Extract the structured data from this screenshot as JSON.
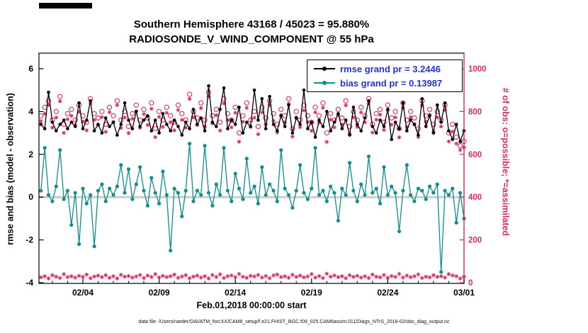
{
  "header": {
    "title_line1": "Southern Hemisphere 43168 / 45023 = 95.880%",
    "title_line2": "RADIOSONDE_V_WIND_COMPONENT @ 55 hPa"
  },
  "axes": {
    "left_label": "rmse and bias (model - observation)",
    "right_label": "# of obs: o=possible; *=assimilated",
    "x_label": "Feb.01,2018 00:00:00 start",
    "x_tick_labels": [
      "02/04",
      "02/09",
      "02/14",
      "02/19",
      "02/24",
      "03/01"
    ],
    "x_tick_days": [
      3,
      8,
      13,
      18,
      23,
      28
    ],
    "left_ticks": [
      -4,
      -2,
      0,
      2,
      4,
      6
    ],
    "right_ticks": [
      0,
      200,
      400,
      600,
      800,
      1000
    ]
  },
  "legend": {
    "text_color": "#2334d4",
    "entries": [
      {
        "label": "rmse grand pr = 3.2446",
        "color": "#000000"
      },
      {
        "label": "bias grand pr = 0.13987",
        "color": "#0f8e8e"
      }
    ]
  },
  "footer": {
    "data_file": "data file: /Users/raeder/DAI/ATM_forcXX/CAM6_setup/f.e21.FHIST_BGC.f09_025.CAM6assim.011/Diags_NTrS_2018-02/obs_diag_output.nc"
  },
  "colors": {
    "pink": "#dc2a63",
    "teal": "#0f8e8e",
    "black": "#000000",
    "zero_line": "#cccccc",
    "legend_text": "#2334d4"
  },
  "chart_data": {
    "type": "line",
    "title": "Southern Hemisphere 43168 / 45023 = 95.880%",
    "subtitle": "RADIOSONDE_V_WIND_COMPONENT @ 55 hPa",
    "xlabel": "Feb.01,2018 00:00:00 start",
    "ylabel_left": "rmse and bias (model - observation)",
    "ylabel_right": "# of obs: o=possible; *=assimilated",
    "ylim_left": [
      -4,
      6.8
    ],
    "ylim_right": [
      0,
      1070
    ],
    "xlim_days": [
      0,
      28
    ],
    "grid": false,
    "legend_position": "top-right",
    "x": {
      "start_day": 0.25,
      "step_days": 0.25,
      "count": 112
    },
    "series": [
      {
        "name": "possible_obs",
        "axis": "right",
        "color": "#dc2a63",
        "marker": "open-circle",
        "line": false,
        "values": [
          780,
          820,
          850,
          760,
          800,
          870,
          740,
          790,
          810,
          760,
          830,
          780,
          750,
          860,
          790,
          770,
          800,
          740,
          820,
          780,
          850,
          760,
          800,
          730,
          790,
          830,
          760,
          810,
          770,
          840,
          720,
          800,
          760,
          820,
          780,
          750,
          830,
          790,
          760,
          880,
          800,
          770,
          840,
          760,
          890,
          780,
          810,
          750,
          860,
          790,
          760,
          820,
          700,
          780,
          840,
          760,
          800,
          730,
          820,
          770,
          850,
          790,
          740,
          810,
          780,
          860,
          720,
          800,
          760,
          830,
          780,
          750,
          820,
          780,
          840,
          700,
          790,
          760,
          810,
          770,
          850,
          730,
          800,
          760,
          820,
          780,
          860,
          740,
          790,
          810,
          750,
          830,
          770,
          800,
          720,
          840,
          760,
          800,
          770,
          720,
          850,
          780,
          810,
          740,
          800,
          760,
          830,
          700,
          740,
          680,
          640,
          660
        ]
      },
      {
        "name": "assimilated_obs",
        "axis": "right",
        "color": "#dc2a63",
        "marker": "asterisk",
        "line": false,
        "values": [
          755,
          790,
          830,
          725,
          772,
          848,
          700,
          764,
          780,
          736,
          798,
          753,
          712,
          839,
          761,
          737,
          774,
          705,
          797,
          750,
          830,
          723,
          772,
          699,
          766,
          801,
          724,
          788,
          737,
          813,
          680,
          775,
          728,
          794,
          750,
          712,
          807,
          761,
          725,
          859,
          772,
          737,
          816,
          730,
          870,
          744,
          783,
          711,
          838,
          760,
          726,
          794,
          659,
          752,
          817,
          728,
          771,
          694,
          796,
          739,
          829,
          756,
          702,
          784,
          750,
          837,
          683,
          773,
          727,
          805,
          751,
          710,
          796,
          749,
          818,
          658,
          762,
          726,
          784,
          740,
          829,
          695,
          773,
          728,
          796,
          750,
          838,
          702,
          762,
          785,
          714,
          807,
          739,
          773,
          679,
          816,
          727,
          774,
          740,
          681,
          828,
          752,
          785,
          705,
          773,
          730,
          806,
          660,
          706,
          650,
          620,
          632
        ]
      },
      {
        "name": "rejected_obs",
        "axis": "right",
        "color": "#dc2a63",
        "marker": "asterisk",
        "line": false,
        "values": [
          25,
          30,
          20,
          35,
          28,
          22,
          40,
          26,
          30,
          24,
          32,
          27,
          38,
          21,
          29,
          33,
          26,
          35,
          23,
          30,
          20,
          37,
          28,
          31,
          24,
          29,
          36,
          22,
          33,
          27,
          40,
          25,
          32,
          26,
          30,
          38,
          23,
          29,
          35,
          21,
          28,
          33,
          24,
          30,
          20,
          36,
          27,
          39,
          22,
          30,
          34,
          26,
          41,
          28,
          23,
          32,
          29,
          36,
          24,
          31,
          21,
          34,
          38,
          26,
          30,
          23,
          37,
          27,
          33,
          25,
          29,
          40,
          24,
          31,
          22,
          42,
          28,
          34,
          26,
          30,
          21,
          35,
          27,
          32,
          24,
          30,
          22,
          38,
          28,
          25,
          36,
          23,
          31,
          27,
          41,
          24,
          33,
          26,
          30,
          39,
          22,
          28,
          25,
          35,
          27,
          30,
          24,
          40,
          34,
          30,
          20,
          28
        ]
      },
      {
        "name": "rmse",
        "axis": "left",
        "color": "#000000",
        "marker": "dot",
        "line": true,
        "values": [
          3.4,
          3.2,
          4.9,
          3.5,
          3.1,
          3.4,
          3.6,
          3.2,
          3.5,
          3.3,
          4.4,
          3.2,
          3.6,
          4.5,
          3.1,
          3.4,
          3.0,
          3.7,
          3.3,
          3.5,
          2.9,
          3.4,
          4.4,
          3.6,
          3.2,
          4.0,
          3.3,
          3.6,
          3.8,
          3.1,
          3.6,
          3.0,
          3.9,
          3.4,
          3.1,
          3.6,
          3.3,
          2.9,
          3.5,
          3.2,
          4.1,
          3.4,
          3.7,
          3.1,
          5.2,
          3.5,
          3.3,
          4.1,
          5.1,
          3.2,
          3.6,
          3.4,
          4.2,
          3.0,
          3.5,
          3.3,
          5.0,
          3.6,
          4.6,
          3.2,
          4.7,
          3.4,
          3.1,
          3.8,
          3.3,
          4.3,
          3.0,
          3.7,
          3.4,
          5.0,
          3.2,
          3.5,
          2.8,
          3.6,
          3.3,
          4.0,
          3.1,
          3.5,
          3.9,
          3.2,
          3.6,
          2.9,
          4.2,
          3.4,
          3.1,
          3.7,
          4.5,
          3.3,
          3.0,
          3.6,
          3.3,
          4.1,
          2.7,
          3.5,
          3.2,
          4.4,
          3.1,
          3.6,
          3.4,
          2.9,
          4.6,
          3.3,
          3.8,
          3.0,
          4.3,
          3.5,
          4.4,
          3.1,
          2.7,
          3.4,
          2.6,
          3.1
        ]
      },
      {
        "name": "bias",
        "axis": "left",
        "color": "#0f8e8e",
        "marker": "dot",
        "line": true,
        "values": [
          0.3,
          2.3,
          0.1,
          -0.2,
          0.5,
          2.2,
          -0.1,
          0.3,
          -1.3,
          0.2,
          -2.2,
          0.4,
          -0.3,
          0.1,
          -2.3,
          0.3,
          0.6,
          -0.2,
          0.4,
          0.1,
          0.5,
          1.5,
          0.2,
          1.3,
          -0.1,
          0.6,
          1.4,
          0.3,
          -0.4,
          0.9,
          0.2,
          -0.3,
          1.2,
          0.1,
          -2.5,
          0.4,
          0.2,
          -0.9,
          0.3,
          2.5,
          -0.2,
          0.3,
          0.1,
          2.4,
          0.2,
          -0.4,
          0.6,
          0.1,
          2.3,
          0.3,
          -0.2,
          1.1,
          0.4,
          -0.1,
          1.8,
          0.2,
          0.5,
          -0.3,
          1.4,
          0.1,
          0.6,
          0.3,
          -0.2,
          2.2,
          0.4,
          0.1,
          -0.5,
          0.3,
          1.5,
          0.2,
          -0.1,
          0.4,
          2.3,
          0.1,
          0.3,
          -0.2,
          0.5,
          0.2,
          -1.1,
          0.4,
          0.1,
          1.6,
          0.3,
          -0.2,
          0.6,
          0.1,
          1.9,
          0.2,
          0.4,
          -0.3,
          1.4,
          0.1,
          0.5,
          0.2,
          -1.6,
          0.3,
          1.5,
          0.1,
          -0.2,
          0.4,
          0.3,
          -0.1,
          0.5,
          0.2,
          0.6,
          -3.5,
          0.3,
          0.1,
          0.4,
          -1.2,
          0.2,
          -1.0
        ]
      }
    ]
  }
}
